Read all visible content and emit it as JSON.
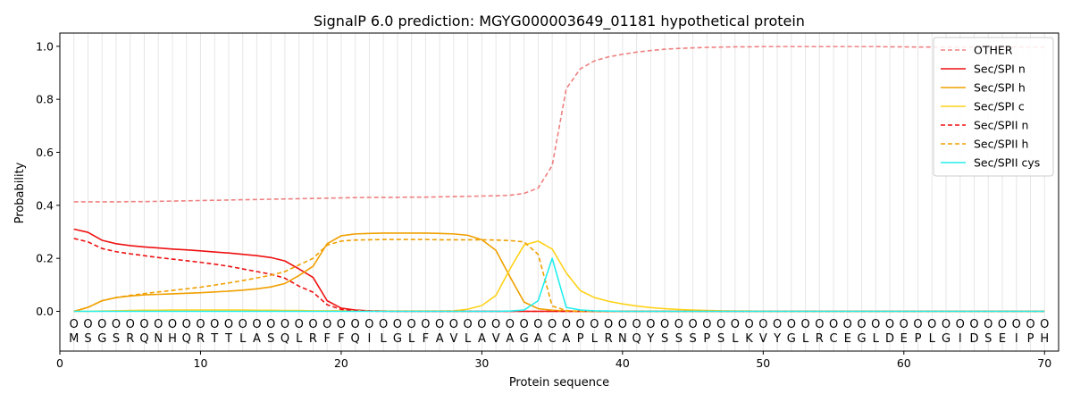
{
  "chart_data": {
    "type": "line",
    "title": "SignalP 6.0 prediction: MGYG000003649_01181 hypothetical protein",
    "xlabel": "Protein sequence",
    "ylabel": "Probability",
    "xlim": [
      0,
      71
    ],
    "ylim": [
      -0.15,
      1.05
    ],
    "x_ticks": [
      0,
      10,
      20,
      30,
      40,
      50,
      60,
      70
    ],
    "y_ticks": [
      0.0,
      0.2,
      0.4,
      0.6,
      0.8,
      1.0
    ],
    "y_tick_labels": [
      "0.0",
      "0.2",
      "0.4",
      "0.6",
      "0.8",
      "1.0"
    ],
    "grid": "vertical lines at each residue",
    "legend_position": "top-right",
    "residues": [
      "M",
      "S",
      "G",
      "S",
      "R",
      "Q",
      "N",
      "H",
      "Q",
      "R",
      "T",
      "T",
      "L",
      "A",
      "S",
      "Q",
      "L",
      "R",
      "F",
      "F",
      "Q",
      "I",
      "L",
      "G",
      "L",
      "F",
      "A",
      "V",
      "L",
      "A",
      "V",
      "A",
      "G",
      "A",
      "C",
      "A",
      "P",
      "L",
      "R",
      "N",
      "Q",
      "Y",
      "S",
      "S",
      "S",
      "P",
      "S",
      "L",
      "K",
      "V",
      "Y",
      "G",
      "L",
      "R",
      "C",
      "E",
      "G",
      "L",
      "D",
      "E",
      "P",
      "L",
      "G",
      "I",
      "D",
      "S",
      "E",
      "I",
      "P",
      "H"
    ],
    "residue_marker": "O",
    "x": [
      1,
      2,
      3,
      4,
      5,
      6,
      7,
      8,
      9,
      10,
      11,
      12,
      13,
      14,
      15,
      16,
      17,
      18,
      19,
      20,
      21,
      22,
      23,
      24,
      25,
      26,
      27,
      28,
      29,
      30,
      31,
      32,
      33,
      34,
      35,
      36,
      37,
      38,
      39,
      40,
      41,
      42,
      43,
      44,
      45,
      46,
      47,
      48,
      49,
      50,
      51,
      52,
      53,
      54,
      55,
      56,
      57,
      58,
      59,
      60,
      61,
      62,
      63,
      64,
      65,
      66,
      67,
      68,
      69,
      70
    ],
    "series": [
      {
        "name": "OTHER",
        "color": "#f08080",
        "dash": "dashed",
        "values": [
          0.413,
          0.413,
          0.413,
          0.413,
          0.414,
          0.414,
          0.415,
          0.416,
          0.417,
          0.418,
          0.419,
          0.42,
          0.421,
          0.422,
          0.423,
          0.424,
          0.425,
          0.426,
          0.427,
          0.428,
          0.429,
          0.43,
          0.43,
          0.43,
          0.431,
          0.431,
          0.432,
          0.433,
          0.434,
          0.435,
          0.436,
          0.438,
          0.445,
          0.465,
          0.55,
          0.84,
          0.915,
          0.945,
          0.96,
          0.97,
          0.978,
          0.984,
          0.989,
          0.992,
          0.994,
          0.996,
          0.997,
          0.998,
          0.998,
          0.999,
          0.999,
          0.999,
          0.999,
          0.999,
          0.999,
          0.999,
          0.999,
          0.999,
          0.998,
          0.998,
          0.997,
          0.997,
          0.997,
          0.997,
          0.997,
          0.997,
          0.997,
          0.997,
          0.997,
          0.997
        ]
      },
      {
        "name": "Sec/SPI n",
        "color": "#ee1111",
        "dash": "solid",
        "values": [
          0.31,
          0.298,
          0.268,
          0.255,
          0.248,
          0.243,
          0.239,
          0.235,
          0.232,
          0.228,
          0.224,
          0.22,
          0.215,
          0.21,
          0.203,
          0.19,
          0.16,
          0.128,
          0.04,
          0.012,
          0.005,
          0.002,
          0.001,
          0,
          0,
          0,
          0,
          0,
          0,
          0,
          0,
          0,
          0,
          0,
          0,
          0,
          0,
          0,
          0,
          0,
          0,
          0,
          0,
          0,
          0,
          0,
          0,
          0,
          0,
          0,
          0,
          0,
          0,
          0,
          0,
          0,
          0,
          0,
          0,
          0,
          0,
          0,
          0,
          0,
          0,
          0,
          0,
          0,
          0,
          0
        ]
      },
      {
        "name": "Sec/SPI h",
        "color": "#f0a000",
        "dash": "solid",
        "values": [
          0,
          0.015,
          0.04,
          0.052,
          0.058,
          0.062,
          0.064,
          0.066,
          0.068,
          0.07,
          0.073,
          0.076,
          0.08,
          0.085,
          0.092,
          0.105,
          0.135,
          0.17,
          0.255,
          0.285,
          0.292,
          0.294,
          0.295,
          0.295,
          0.295,
          0.295,
          0.294,
          0.292,
          0.287,
          0.27,
          0.23,
          0.13,
          0.035,
          0.01,
          0.004,
          0.001,
          0,
          0,
          0,
          0,
          0,
          0,
          0,
          0,
          0,
          0,
          0,
          0,
          0,
          0,
          0,
          0,
          0,
          0,
          0,
          0,
          0,
          0,
          0,
          0,
          0,
          0,
          0,
          0,
          0,
          0,
          0,
          0,
          0,
          0
        ]
      },
      {
        "name": "Sec/SPI c",
        "color": "#ffd21a",
        "dash": "solid",
        "values": [
          0,
          0,
          0.001,
          0.002,
          0.003,
          0.004,
          0.004,
          0.005,
          0.005,
          0.005,
          0.005,
          0.005,
          0.005,
          0.004,
          0.004,
          0.003,
          0.003,
          0.002,
          0.002,
          0.002,
          0.002,
          0.001,
          0.001,
          0.001,
          0.001,
          0.001,
          0.001,
          0.002,
          0.008,
          0.022,
          0.06,
          0.16,
          0.25,
          0.265,
          0.235,
          0.145,
          0.078,
          0.052,
          0.038,
          0.028,
          0.02,
          0.014,
          0.01,
          0.007,
          0.005,
          0.003,
          0.002,
          0.001,
          0.001,
          0,
          0,
          0,
          0,
          0,
          0,
          0,
          0,
          0,
          0,
          0,
          0,
          0,
          0,
          0,
          0,
          0,
          0,
          0,
          0,
          0
        ]
      },
      {
        "name": "Sec/SPII n",
        "color": "#ee1111",
        "dash": "dashed",
        "values": [
          0.275,
          0.262,
          0.237,
          0.225,
          0.217,
          0.21,
          0.203,
          0.197,
          0.191,
          0.185,
          0.178,
          0.17,
          0.16,
          0.15,
          0.14,
          0.125,
          0.095,
          0.072,
          0.025,
          0.007,
          0.003,
          0.001,
          0,
          0,
          0,
          0,
          0,
          0,
          0,
          0,
          0,
          0,
          0,
          0,
          0,
          0,
          0,
          0,
          0,
          0,
          0,
          0,
          0,
          0,
          0,
          0,
          0,
          0,
          0,
          0,
          0,
          0,
          0,
          0,
          0,
          0,
          0,
          0,
          0,
          0,
          0,
          0,
          0,
          0,
          0,
          0,
          0,
          0,
          0,
          0
        ]
      },
      {
        "name": "Sec/SPII h",
        "color": "#f0a000",
        "dash": "dashed",
        "values": [
          0,
          0.015,
          0.04,
          0.052,
          0.06,
          0.067,
          0.073,
          0.079,
          0.085,
          0.091,
          0.099,
          0.107,
          0.116,
          0.126,
          0.136,
          0.15,
          0.175,
          0.2,
          0.25,
          0.265,
          0.269,
          0.27,
          0.271,
          0.271,
          0.271,
          0.271,
          0.27,
          0.27,
          0.27,
          0.27,
          0.269,
          0.267,
          0.262,
          0.215,
          0.02,
          0.003,
          0,
          0,
          0,
          0,
          0,
          0,
          0,
          0,
          0,
          0,
          0,
          0,
          0,
          0,
          0,
          0,
          0,
          0,
          0,
          0,
          0,
          0,
          0,
          0,
          0,
          0,
          0,
          0,
          0,
          0,
          0,
          0,
          0,
          0
        ]
      },
      {
        "name": "Sec/SPII cys",
        "color": "#22eeee",
        "dash": "solid",
        "values": [
          0,
          0,
          0,
          0,
          0,
          0,
          0,
          0,
          0,
          0,
          0,
          0,
          0,
          0,
          0,
          0,
          0,
          0,
          0,
          0,
          0,
          0,
          0,
          0,
          0,
          0,
          0,
          0,
          0,
          0,
          0,
          0.001,
          0.005,
          0.04,
          0.2,
          0.015,
          0.005,
          0.002,
          0.001,
          0,
          0,
          0,
          0,
          0,
          0,
          0,
          0,
          0,
          0,
          0,
          0,
          0,
          0,
          0,
          0,
          0,
          0,
          0,
          0,
          0,
          0,
          0,
          0,
          0,
          0,
          0,
          0,
          0,
          0,
          0
        ]
      }
    ]
  }
}
